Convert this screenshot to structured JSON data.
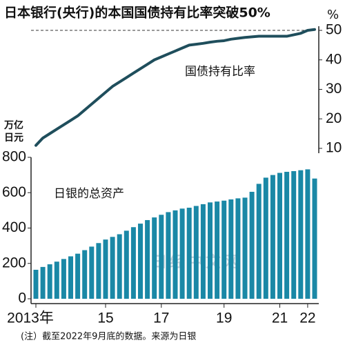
{
  "chart_data": {
    "type": "bar",
    "title": "日本银行(央行)的本国国债持有比率突破50%",
    "y_label": "万亿日元",
    "y2_label": "%",
    "note": "(注）截至2022年9月底的数据。来源为日银",
    "watermark": "日经中文网",
    "categories": [
      "2013年",
      null,
      null,
      null,
      null,
      null,
      null,
      null,
      null,
      null,
      "15",
      null,
      null,
      null,
      null,
      null,
      null,
      null,
      "17",
      null,
      null,
      null,
      null,
      null,
      null,
      null,
      null,
      "19",
      null,
      null,
      null,
      null,
      null,
      null,
      null,
      "21",
      null,
      null,
      null,
      "22",
      null
    ],
    "series": [
      {
        "name": "国债持有比率",
        "type": "line",
        "axis": "y2",
        "color": "#1f4e5c",
        "values": [
          11,
          13.5,
          15,
          16.5,
          18,
          19.5,
          21,
          23,
          25,
          27,
          29,
          31,
          32.5,
          34,
          35.5,
          37,
          38.5,
          40,
          41,
          42,
          43,
          44,
          45,
          45.3,
          45.6,
          46,
          46.3,
          46.5,
          47,
          47.3,
          47.6,
          47.8,
          48,
          48,
          48,
          48,
          48,
          48.5,
          49,
          50,
          50.3
        ]
      },
      {
        "name": "日银的总资产",
        "type": "bar",
        "color": "#1a88a6",
        "values": [
          164,
          180,
          195,
          210,
          225,
          240,
          255,
          275,
          295,
          315,
          335,
          350,
          365,
          385,
          405,
          425,
          445,
          460,
          475,
          490,
          500,
          510,
          515,
          525,
          535,
          545,
          550,
          555,
          562,
          568,
          572,
          605,
          650,
          685,
          700,
          712,
          718,
          722,
          727,
          732,
          680
        ]
      }
    ],
    "ylim": [
      0,
      800
    ],
    "yticks": [
      0,
      200,
      400,
      600,
      800
    ],
    "y2lim": [
      10,
      50
    ],
    "y2ticks": [
      10,
      20,
      30,
      40,
      50
    ],
    "reference_line": 50
  }
}
